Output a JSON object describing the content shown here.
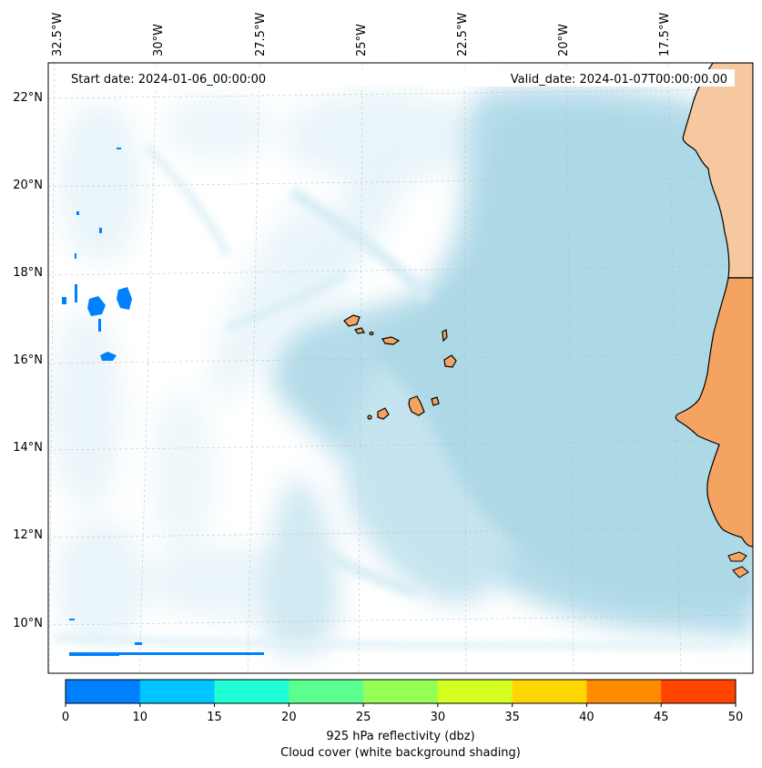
{
  "header": {
    "start_date": "Start date: 2024-01-06_00:00:00",
    "valid_date": "Valid_date: 2024-01-07T00:00:00.00"
  },
  "map": {
    "lon_labels": [
      "32.5°W",
      "30°W",
      "27.5°W",
      "25°W",
      "22.5°W",
      "20°W",
      "17.5°W"
    ],
    "lat_labels": [
      "22°N",
      "20°N",
      "18°N",
      "16°N",
      "14°N",
      "12°N",
      "10°N"
    ],
    "colors": {
      "land_north": "#f6c8a0",
      "land": "#f4a460",
      "coast": "#000000",
      "ocean_cloud": "#add8e6",
      "cloud_light": "#dcf0f6",
      "reflectivity": "#0080ff"
    }
  },
  "colorbar": {
    "ticks": [
      "0",
      "10",
      "15",
      "20",
      "25",
      "30",
      "35",
      "40",
      "45",
      "50"
    ],
    "colors": [
      "#0080ff",
      "#00c5ff",
      "#20ffd5",
      "#5aff90",
      "#96ff55",
      "#d5ff1f",
      "#ffd700",
      "#ff8c00",
      "#ff4500"
    ],
    "label_line1": "925 hPa reflectivity (dbz)",
    "label_line2": "Cloud cover (white background shading)"
  }
}
